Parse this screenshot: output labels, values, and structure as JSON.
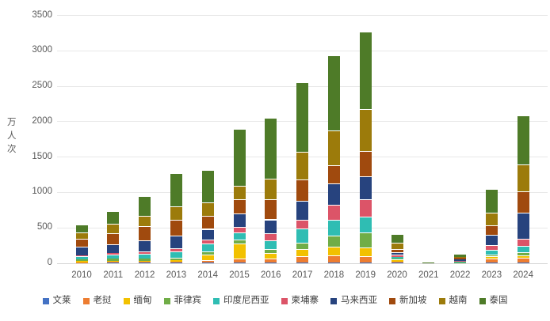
{
  "chart_data": {
    "type": "bar",
    "stacked": true,
    "title": "",
    "xlabel": "",
    "ylabel": "万人次",
    "ylim": [
      0,
      3500
    ],
    "yticks": [
      0,
      500,
      1000,
      1500,
      2000,
      2500,
      3000,
      3500
    ],
    "grid": true,
    "legend_position": "bottom",
    "categories": [
      "2010",
      "2011",
      "2012",
      "2013",
      "2014",
      "2015",
      "2016",
      "2017",
      "2018",
      "2019",
      "2020",
      "2021",
      "2022",
      "2023",
      "2024"
    ],
    "series": [
      {
        "name": "文莱",
        "color": "#4472C4",
        "values": [
          2,
          2,
          2,
          2,
          3,
          3,
          3,
          5,
          8,
          5,
          1,
          0,
          0,
          1,
          3
        ]
      },
      {
        "name": "老挝",
        "color": "#ED7D31",
        "values": [
          6,
          10,
          13,
          10,
          37,
          60,
          60,
          90,
          95,
          85,
          15,
          1,
          2,
          60,
          75
        ]
      },
      {
        "name": "缅甸",
        "color": "#F2C100",
        "values": [
          19,
          20,
          17,
          22,
          81,
          215,
          74,
          95,
          130,
          125,
          30,
          1,
          2,
          30,
          30
        ]
      },
      {
        "name": "菲律宾",
        "color": "#70AD47",
        "values": [
          19,
          24,
          25,
          43,
          40,
          55,
          60,
          90,
          150,
          215,
          17,
          1,
          2,
          28,
          40
        ]
      },
      {
        "name": "印度尼西亚",
        "color": "#2FBDB3",
        "values": [
          47,
          57,
          69,
          81,
          107,
          96,
          118,
          205,
          220,
          225,
          24,
          1,
          20,
          70,
          90
        ]
      },
      {
        "name": "柬埔寨",
        "color": "#DC5468",
        "values": [
          18,
          25,
          33,
          46,
          56,
          75,
          104,
          120,
          220,
          245,
          29,
          1,
          3,
          60,
          105
        ]
      },
      {
        "name": "马来西亚",
        "color": "#27437E",
        "values": [
          113,
          125,
          156,
          179,
          156,
          190,
          195,
          270,
          295,
          320,
          40,
          1,
          20,
          150,
          370
        ]
      },
      {
        "name": "新加坡",
        "color": "#A04A0E",
        "values": [
          117,
          157,
          203,
          227,
          180,
          205,
          289,
          305,
          265,
          360,
          34,
          2,
          20,
          130,
          300
        ]
      },
      {
        "name": "越南",
        "color": "#9C7B0B",
        "values": [
          91,
          130,
          143,
          191,
          190,
          185,
          285,
          385,
          490,
          590,
          95,
          1,
          18,
          175,
          380
        ]
      },
      {
        "name": "泰国",
        "color": "#4E7B28",
        "values": [
          113,
          176,
          279,
          465,
          460,
          805,
          865,
          990,
          1060,
          1100,
          125,
          1,
          25,
          345,
          685
        ]
      }
    ]
  }
}
